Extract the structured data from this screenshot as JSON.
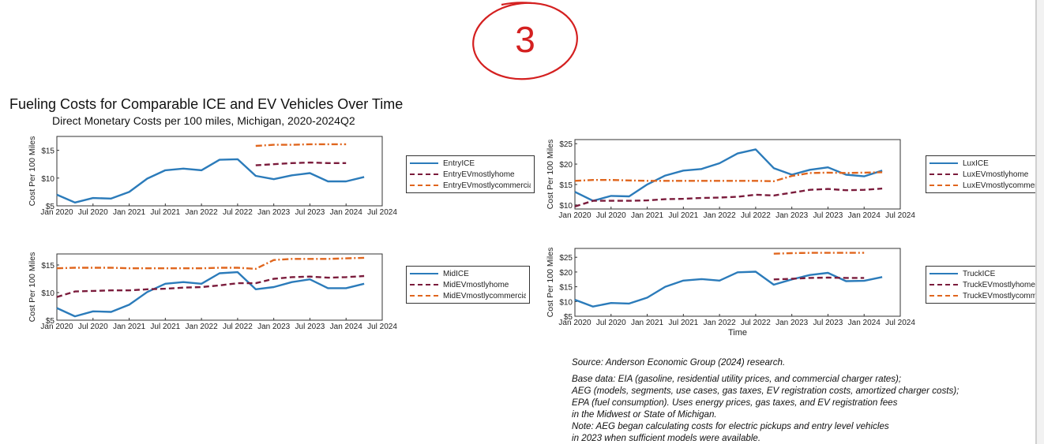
{
  "figure": {
    "title": "Fueling Costs for Comparable ICE and EV Vehicles Over Time",
    "subtitle": "Direct Monetary Costs per 100 miles, Michigan, 2020-2024Q2",
    "handwritten_annotation": "3",
    "annotation_color": "#d42020"
  },
  "source_note": {
    "lines": [
      "Source: Anderson Economic Group (2024) research.",
      "Base data: EIA (gasoline, residential utility prices, and commercial charger rates);",
      "AEG (models, segments, use cases, gas taxes, EV registration costs, amortized charger costs);",
      "EPA (fuel consumption). Uses energy prices, gas taxes, and EV registration fees",
      "in the Midwest or State of Michigan.",
      "Note: AEG began calculating costs for electric pickups and entry level vehicles",
      "in 2023 when sufficient models were available."
    ]
  },
  "colors": {
    "ice": "#2b7bba",
    "ev_home": "#7b1c3c",
    "ev_commercial": "#e0661e"
  },
  "chart_data": [
    {
      "id": "entry",
      "type": "line",
      "ylabel": "Cost Per 100 Miles",
      "xlabel": "",
      "x_tick_labels": [
        "Jan 2020",
        "Jul 2020",
        "Jan 2021",
        "Jul 2021",
        "Jan 2022",
        "Jul 2022",
        "Jan 2023",
        "Jul 2023",
        "Jan 2024",
        "Jul 2024"
      ],
      "xlim": [
        0,
        18
      ],
      "ylim": [
        5,
        17.5
      ],
      "y_ticks": [
        5,
        10,
        15
      ],
      "y_tick_labels": [
        "$5",
        "$10",
        "$15"
      ],
      "legend": {
        "placement": "right-outside"
      },
      "series": [
        {
          "name": "EntryICE",
          "style": "solid",
          "color": "#2b7bba",
          "x": [
            0,
            1,
            2,
            3,
            4,
            5,
            6,
            7,
            8,
            9,
            10,
            11,
            12,
            13,
            14,
            15,
            16,
            17
          ],
          "y": [
            7.0,
            5.6,
            6.4,
            6.3,
            7.5,
            9.9,
            11.4,
            11.7,
            11.4,
            13.3,
            13.4,
            10.4,
            9.8,
            10.5,
            10.9,
            9.4,
            9.4,
            10.2
          ]
        },
        {
          "name": "EntryEVmostlyhome",
          "style": "dashed",
          "color": "#7b1c3c",
          "x": [
            11,
            12,
            13,
            14,
            15,
            16
          ],
          "y": [
            12.3,
            12.5,
            12.7,
            12.8,
            12.7,
            12.7
          ]
        },
        {
          "name": "EntryEVmostlycommercial",
          "style": "dashdot",
          "color": "#e0661e",
          "x": [
            11,
            12,
            13,
            14,
            15,
            16
          ],
          "y": [
            15.8,
            16.0,
            16.0,
            16.1,
            16.1,
            16.1
          ]
        }
      ]
    },
    {
      "id": "lux",
      "type": "line",
      "ylabel": "Cost Per 100 Miles",
      "xlabel": "",
      "x_tick_labels": [
        "Jan 2020",
        "Jul 2020",
        "Jan 2021",
        "Jul 2021",
        "Jan 2022",
        "Jul 2022",
        "Jan 2023",
        "Jul 2023",
        "Jan 2024",
        "Jul 2024"
      ],
      "xlim": [
        0,
        18
      ],
      "ylim": [
        9,
        26
      ],
      "y_ticks": [
        10,
        15,
        20,
        25
      ],
      "y_tick_labels": [
        "$10",
        "$15",
        "$20",
        "$25"
      ],
      "legend": {
        "placement": "right-outside"
      },
      "series": [
        {
          "name": "LuxICE",
          "style": "solid",
          "color": "#2b7bba",
          "x": [
            0,
            1,
            2,
            3,
            4,
            5,
            6,
            7,
            8,
            9,
            10,
            11,
            12,
            13,
            14,
            15,
            16,
            17
          ],
          "y": [
            13.2,
            11.0,
            12.2,
            12.1,
            15.0,
            17.2,
            18.4,
            18.8,
            20.2,
            22.6,
            23.6,
            19.0,
            17.4,
            18.6,
            19.2,
            17.4,
            17.0,
            18.4
          ]
        },
        {
          "name": "LuxEVmostlyhome",
          "style": "dashed",
          "color": "#7b1c3c",
          "x": [
            0,
            1,
            2,
            3,
            4,
            5,
            6,
            7,
            8,
            9,
            10,
            11,
            12,
            13,
            14,
            15,
            16,
            17
          ],
          "y": [
            9.6,
            11.0,
            11.0,
            11.0,
            11.1,
            11.4,
            11.5,
            11.7,
            11.8,
            12.0,
            12.5,
            12.3,
            13.0,
            13.7,
            13.9,
            13.6,
            13.7,
            14.0
          ]
        },
        {
          "name": "LuxEVmostlycommercial",
          "style": "dashdot",
          "color": "#e0661e",
          "x": [
            0,
            1,
            2,
            3,
            4,
            5,
            6,
            7,
            8,
            9,
            10,
            11,
            12,
            13,
            14,
            15,
            16,
            17
          ],
          "y": [
            15.9,
            16.1,
            16.1,
            16.0,
            15.9,
            15.9,
            15.9,
            15.9,
            15.9,
            15.9,
            15.9,
            15.8,
            17.1,
            17.8,
            17.9,
            17.8,
            17.9,
            18.0
          ]
        }
      ]
    },
    {
      "id": "mid",
      "type": "line",
      "ylabel": "Cost Per 100 Miles",
      "xlabel": "",
      "x_tick_labels": [
        "Jan 2020",
        "Jul 2020",
        "Jan 2021",
        "Jul 2021",
        "Jan 2022",
        "Jul 2022",
        "Jan 2023",
        "Jul 2023",
        "Jan 2024",
        "Jul 2024"
      ],
      "xlim": [
        0,
        18
      ],
      "ylim": [
        5,
        17
      ],
      "y_ticks": [
        5,
        10,
        15
      ],
      "y_tick_labels": [
        "$5",
        "$10",
        "$15"
      ],
      "legend": {
        "placement": "right-outside"
      },
      "series": [
        {
          "name": "MidICE",
          "style": "solid",
          "color": "#2b7bba",
          "x": [
            0,
            1,
            2,
            3,
            4,
            5,
            6,
            7,
            8,
            9,
            10,
            11,
            12,
            13,
            14,
            15,
            16,
            17
          ],
          "y": [
            7.2,
            5.7,
            6.6,
            6.5,
            7.8,
            10.1,
            11.6,
            11.9,
            11.6,
            13.5,
            13.7,
            10.6,
            11.0,
            11.9,
            12.4,
            10.8,
            10.8,
            11.6
          ]
        },
        {
          "name": "MidEVmostlyhome",
          "style": "dashed",
          "color": "#7b1c3c",
          "x": [
            0,
            1,
            2,
            3,
            4,
            5,
            6,
            7,
            8,
            9,
            10,
            11,
            12,
            13,
            14,
            15,
            16,
            17
          ],
          "y": [
            9.2,
            10.2,
            10.3,
            10.4,
            10.4,
            10.6,
            10.7,
            10.9,
            11.0,
            11.3,
            11.7,
            11.7,
            12.5,
            12.8,
            12.9,
            12.7,
            12.8,
            13.0
          ]
        },
        {
          "name": "MidEVmostlycommercial",
          "style": "dashdot",
          "color": "#e0661e",
          "x": [
            0,
            1,
            2,
            3,
            4,
            5,
            6,
            7,
            8,
            9,
            10,
            11,
            12,
            13,
            14,
            15,
            16,
            17
          ],
          "y": [
            14.4,
            14.5,
            14.5,
            14.5,
            14.4,
            14.4,
            14.4,
            14.4,
            14.4,
            14.5,
            14.5,
            14.3,
            15.9,
            16.1,
            16.1,
            16.1,
            16.2,
            16.3
          ]
        }
      ]
    },
    {
      "id": "truck",
      "type": "line",
      "ylabel": "Cost Per 100 Miles",
      "xlabel": "Time",
      "x_tick_labels": [
        "Jan 2020",
        "Jul 2020",
        "Jan 2021",
        "Jul 2021",
        "Jan 2022",
        "Jul 2022",
        "Jan 2023",
        "Jul 2023",
        "Jan 2024",
        "Jul 2024"
      ],
      "xlim": [
        0,
        18
      ],
      "ylim": [
        5,
        28
      ],
      "y_ticks": [
        5,
        10,
        15,
        20,
        25
      ],
      "y_tick_labels": [
        "$5",
        "$10",
        "$15",
        "$20",
        "$25"
      ],
      "legend": {
        "placement": "right-outside"
      },
      "series": [
        {
          "name": "TruckICE",
          "style": "solid",
          "color": "#2b7bba",
          "x": [
            0,
            1,
            2,
            3,
            4,
            5,
            6,
            7,
            8,
            9,
            10,
            11,
            12,
            13,
            14,
            15,
            16,
            17
          ],
          "y": [
            10.6,
            8.3,
            9.5,
            9.3,
            11.3,
            15.0,
            17.1,
            17.6,
            17.1,
            19.9,
            20.1,
            15.7,
            17.5,
            19.0,
            19.7,
            16.9,
            17.0,
            18.3
          ]
        },
        {
          "name": "TruckEVmostlyhome",
          "style": "dashed",
          "color": "#7b1c3c",
          "x": [
            11,
            12,
            13,
            14,
            15,
            16
          ],
          "y": [
            17.5,
            17.7,
            18.0,
            18.1,
            18.0,
            18.0
          ]
        },
        {
          "name": "TruckEVmostlycommercial",
          "style": "dashdot",
          "color": "#e0661e",
          "x": [
            11,
            12,
            13,
            14,
            15,
            16
          ],
          "y": [
            26.2,
            26.4,
            26.5,
            26.5,
            26.5,
            26.5
          ]
        }
      ]
    }
  ]
}
